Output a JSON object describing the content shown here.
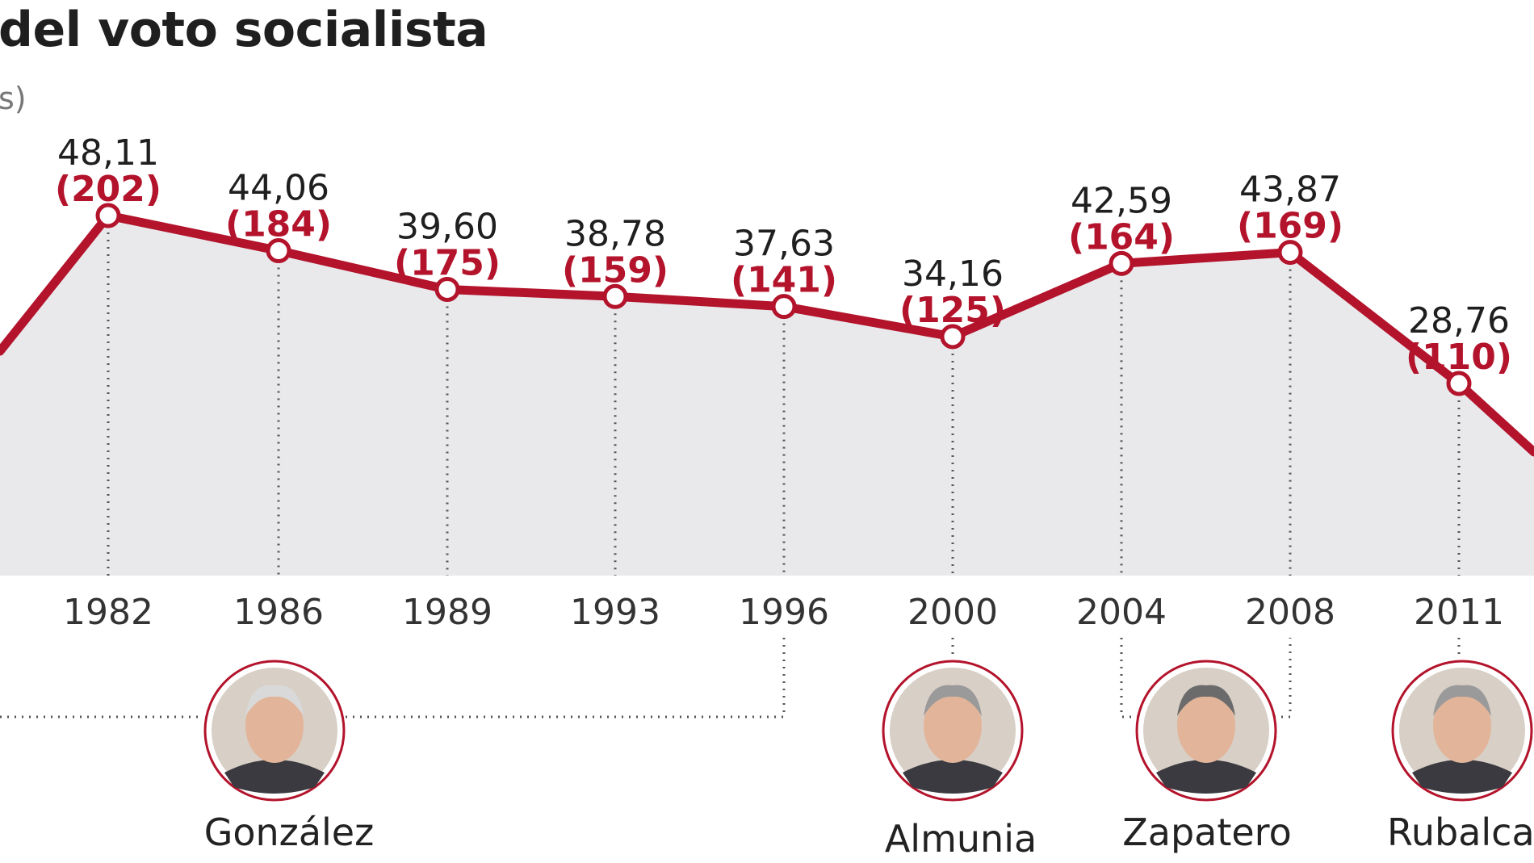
{
  "title": "del voto socialista",
  "subtitle": "s)",
  "colors": {
    "line": "#b3132b",
    "area": "#e9e9ec",
    "guide": "#555555",
    "seats_text": "#b3132b",
    "pct_text": "#1f1f1f"
  },
  "chart_data": {
    "type": "line",
    "title": "del voto socialista",
    "categories": [
      "1982",
      "1986",
      "1989",
      "1993",
      "1996",
      "2000",
      "2004",
      "2008",
      "2011"
    ],
    "series": [
      {
        "values": [
          48.11,
          44.06,
          39.6,
          38.78,
          37.63,
          34.16,
          42.59,
          43.87,
          28.76
        ]
      }
    ],
    "point_labels": [
      "48,11",
      "44,06",
      "39,60",
      "38,78",
      "37,63",
      "34,16",
      "42,59",
      "43,87",
      "28,76"
    ],
    "seat_labels": [
      "(202)",
      "(184)",
      "(175)",
      "(159)",
      "(141)",
      "(125)",
      "(164)",
      "(169)",
      "(110)"
    ],
    "grid": false,
    "legend": "none"
  },
  "leaders": [
    {
      "name": "González",
      "icon": "portrait-gonzalez-icon",
      "years": [
        "1982",
        "1986",
        "1989",
        "1993",
        "1996"
      ]
    },
    {
      "name": "Almunia",
      "icon": "portrait-almunia-icon",
      "years": [
        "2000"
      ]
    },
    {
      "name": "Zapatero",
      "icon": "portrait-zapatero-icon",
      "years": [
        "2004",
        "2008"
      ]
    },
    {
      "name": "Rubalcaba",
      "icon": "portrait-rubalcaba-icon",
      "years": [
        "2011"
      ]
    }
  ]
}
